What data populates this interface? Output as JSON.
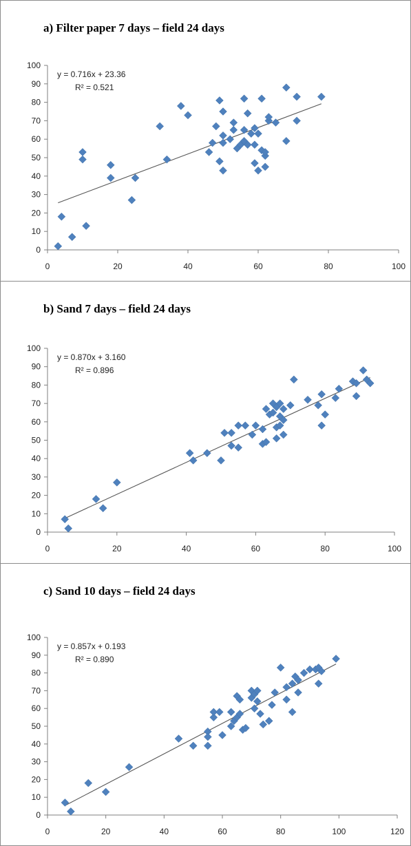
{
  "chart_data": [
    {
      "type": "scatter",
      "title": "a) Filter paper 7 days – field 24 days",
      "equation": "y = 0.716x + 23.36",
      "r_squared": "R² = 0.521",
      "trendline": {
        "slope": 0.716,
        "intercept": 23.36,
        "x_range": [
          3,
          78
        ]
      },
      "xlim": [
        0,
        100
      ],
      "ylim": [
        0,
        100
      ],
      "x_ticks": [
        0,
        20,
        40,
        60,
        80,
        100
      ],
      "y_ticks": [
        0,
        10,
        20,
        30,
        40,
        50,
        60,
        70,
        80,
        90,
        100
      ],
      "marker_color": "#4f81bd",
      "x": [
        3,
        4,
        7,
        10,
        10,
        11,
        18,
        18,
        24,
        25,
        32,
        34,
        38,
        40,
        46,
        47,
        48,
        49,
        49,
        50,
        50,
        50,
        50,
        52,
        53,
        53,
        54,
        55,
        56,
        56,
        56,
        57,
        57,
        58,
        59,
        59,
        59,
        60,
        60,
        61,
        61,
        62,
        62,
        62,
        63,
        63,
        65,
        68,
        68,
        71,
        71,
        78
      ],
      "y": [
        2,
        18,
        7,
        53,
        49,
        13,
        46,
        39,
        27,
        39,
        67,
        49,
        78,
        73,
        53,
        58,
        67,
        81,
        48,
        75,
        62,
        58,
        43,
        60,
        65,
        69,
        55,
        57,
        82,
        65,
        59,
        74,
        57,
        63,
        57,
        47,
        66,
        43,
        63,
        82,
        54,
        45,
        51,
        53,
        70,
        72,
        69,
        88,
        59,
        83,
        70,
        83
      ]
    },
    {
      "type": "scatter",
      "title": "b) Sand 7 days – field 24 days",
      "equation": "y = 0.870x + 3.160",
      "r_squared": "R² = 0.896",
      "trendline": {
        "slope": 0.87,
        "intercept": 3.16,
        "x_range": [
          5,
          93
        ]
      },
      "xlim": [
        0,
        100
      ],
      "ylim": [
        0,
        100
      ],
      "x_ticks": [
        0,
        20,
        40,
        60,
        80,
        100
      ],
      "y_ticks": [
        0,
        10,
        20,
        30,
        40,
        50,
        60,
        70,
        80,
        90,
        100
      ],
      "marker_color": "#4f81bd",
      "x": [
        5,
        6,
        14,
        16,
        20,
        41,
        42,
        46,
        50,
        51,
        53,
        53,
        55,
        55,
        57,
        59,
        60,
        62,
        62,
        63,
        63,
        64,
        65,
        65,
        66,
        66,
        66,
        67,
        67,
        67,
        68,
        68,
        68,
        70,
        71,
        75,
        78,
        79,
        79,
        80,
        83,
        84,
        88,
        89,
        89,
        91,
        92,
        93
      ],
      "y": [
        7,
        2,
        18,
        13,
        27,
        43,
        39,
        43,
        39,
        54,
        47,
        54,
        46,
        58,
        58,
        53,
        58,
        48,
        56,
        49,
        67,
        64,
        70,
        65,
        51,
        57,
        68,
        70,
        63,
        58,
        53,
        61,
        67,
        69,
        83,
        72,
        69,
        58,
        75,
        64,
        73,
        78,
        82,
        74,
        81,
        88,
        83,
        81
      ]
    },
    {
      "type": "scatter",
      "title": "c) Sand 10 days – field 24 days",
      "equation": "y = 0.857x + 0.193",
      "r_squared": "R² = 0.890",
      "trendline": {
        "slope": 0.857,
        "intercept": 0.193,
        "x_range": [
          6,
          99
        ]
      },
      "xlim": [
        0,
        120
      ],
      "ylim": [
        0,
        100
      ],
      "x_ticks": [
        0,
        20,
        40,
        60,
        80,
        100,
        120
      ],
      "y_ticks": [
        0,
        10,
        20,
        30,
        40,
        50,
        60,
        70,
        80,
        90,
        100
      ],
      "marker_color": "#4f81bd",
      "x": [
        6,
        8,
        14,
        20,
        28,
        45,
        50,
        55,
        55,
        55,
        57,
        57,
        59,
        60,
        63,
        63,
        64,
        65,
        65,
        66,
        66,
        67,
        68,
        70,
        70,
        71,
        71,
        72,
        72,
        73,
        74,
        76,
        77,
        78,
        80,
        82,
        82,
        84,
        84,
        85,
        86,
        86,
        88,
        90,
        92,
        93,
        93,
        94,
        99
      ],
      "y": [
        7,
        2,
        18,
        13,
        27,
        43,
        39,
        39,
        47,
        44,
        55,
        58,
        58,
        45,
        58,
        50,
        53,
        67,
        55,
        65,
        57,
        48,
        49,
        66,
        70,
        60,
        68,
        70,
        64,
        57,
        51,
        53,
        62,
        69,
        83,
        72,
        65,
        58,
        74,
        78,
        76,
        69,
        80,
        82,
        82,
        74,
        83,
        81,
        88
      ]
    }
  ]
}
